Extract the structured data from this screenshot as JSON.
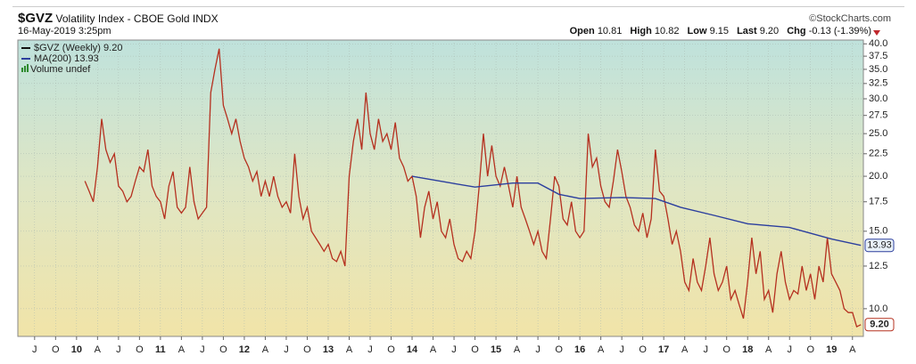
{
  "header": {
    "symbol": "$GVZ",
    "description": "Volatility Index - CBOE Gold INDX",
    "source": "©StockCharts.com",
    "timestamp": "16-May-2019 3:25pm",
    "quote": [
      {
        "label": "Open",
        "value": "10.81"
      },
      {
        "label": "High",
        "value": "10.82"
      },
      {
        "label": "Low",
        "value": "9.15"
      },
      {
        "label": "Last",
        "value": "9.20"
      },
      {
        "label": "Chg",
        "value": "-0.13 (-1.39%)"
      }
    ]
  },
  "chart_data": {
    "type": "line",
    "log_y": true,
    "grid": true,
    "volume_label": "Volume undef",
    "volume_color": "#2e8b2e",
    "ylim": [
      8.65,
      40.8
    ],
    "yticks": [
      {
        "value": 10,
        "label": "10.0"
      },
      12.5,
      {
        "value": 15,
        "label": "15.0"
      },
      17.5,
      {
        "value": 20,
        "label": "20.0"
      },
      22.5,
      {
        "value": 25,
        "label": "25.0"
      },
      27.5,
      {
        "value": 30,
        "label": "30.0"
      },
      32.5,
      {
        "value": 35,
        "label": "35.0"
      },
      37.5,
      {
        "value": 40,
        "label": "40.0"
      }
    ],
    "xlim": [
      2009.3,
      2019.38
    ],
    "xticks": [
      {
        "value": 2009.5,
        "label": "J"
      },
      {
        "value": 2009.75,
        "label": "O"
      },
      {
        "value": 2010,
        "label": "10"
      },
      {
        "value": 2010.25,
        "label": "A"
      },
      {
        "value": 2010.5,
        "label": "J"
      },
      {
        "value": 2010.75,
        "label": "O"
      },
      {
        "value": 2011,
        "label": "11"
      },
      {
        "value": 2011.25,
        "label": "A"
      },
      {
        "value": 2011.5,
        "label": "J"
      },
      {
        "value": 2011.75,
        "label": "O"
      },
      {
        "value": 2012,
        "label": "12"
      },
      {
        "value": 2012.25,
        "label": "A"
      },
      {
        "value": 2012.5,
        "label": "J"
      },
      {
        "value": 2012.75,
        "label": "O"
      },
      {
        "value": 2013,
        "label": "13"
      },
      {
        "value": 2013.25,
        "label": "A"
      },
      {
        "value": 2013.5,
        "label": "J"
      },
      {
        "value": 2013.75,
        "label": "O"
      },
      {
        "value": 2014,
        "label": "14"
      },
      {
        "value": 2014.25,
        "label": "A"
      },
      {
        "value": 2014.5,
        "label": "J"
      },
      {
        "value": 2014.75,
        "label": "O"
      },
      {
        "value": 2015,
        "label": "15"
      },
      {
        "value": 2015.25,
        "label": "A"
      },
      {
        "value": 2015.5,
        "label": "J"
      },
      {
        "value": 2015.75,
        "label": "O"
      },
      {
        "value": 2016,
        "label": "16"
      },
      {
        "value": 2016.25,
        "label": "A"
      },
      {
        "value": 2016.5,
        "label": "J"
      },
      {
        "value": 2016.75,
        "label": "O"
      },
      {
        "value": 2017,
        "label": "17"
      },
      {
        "value": 2017.25,
        "label": "A"
      },
      {
        "value": 2017.5,
        "label": "J"
      },
      {
        "value": 2017.75,
        "label": "O"
      },
      {
        "value": 2018,
        "label": "18"
      },
      {
        "value": 2018.25,
        "label": "A"
      },
      {
        "value": 2018.5,
        "label": "J"
      },
      {
        "value": 2018.75,
        "label": "O"
      },
      {
        "value": 2019,
        "label": "19"
      },
      {
        "value": 2019.25,
        "label": "A"
      }
    ],
    "series": [
      {
        "name": "$GVZ (Weekly) 9.20",
        "color": "#b5301f",
        "last_label": "9.20",
        "x": [
          2010.1,
          2010.15,
          2010.2,
          2010.25,
          2010.3,
          2010.35,
          2010.4,
          2010.45,
          2010.5,
          2010.55,
          2010.6,
          2010.65,
          2010.7,
          2010.75,
          2010.8,
          2010.85,
          2010.9,
          2010.95,
          2011,
          2011.05,
          2011.1,
          2011.15,
          2011.2,
          2011.25,
          2011.3,
          2011.35,
          2011.4,
          2011.45,
          2011.5,
          2011.55,
          2011.6,
          2011.65,
          2011.7,
          2011.75,
          2011.8,
          2011.85,
          2011.9,
          2011.95,
          2012,
          2012.05,
          2012.1,
          2012.15,
          2012.2,
          2012.25,
          2012.3,
          2012.35,
          2012.4,
          2012.45,
          2012.5,
          2012.55,
          2012.6,
          2012.65,
          2012.7,
          2012.75,
          2012.8,
          2012.85,
          2012.9,
          2012.95,
          2013,
          2013.05,
          2013.1,
          2013.15,
          2013.2,
          2013.25,
          2013.3,
          2013.35,
          2013.4,
          2013.45,
          2013.5,
          2013.55,
          2013.6,
          2013.65,
          2013.7,
          2013.75,
          2013.8,
          2013.85,
          2013.9,
          2013.95,
          2014,
          2014.05,
          2014.1,
          2014.15,
          2014.2,
          2014.25,
          2014.3,
          2014.35,
          2014.4,
          2014.45,
          2014.5,
          2014.55,
          2014.6,
          2014.65,
          2014.7,
          2014.75,
          2014.8,
          2014.85,
          2014.9,
          2014.95,
          2015,
          2015.05,
          2015.1,
          2015.15,
          2015.2,
          2015.25,
          2015.3,
          2015.35,
          2015.4,
          2015.45,
          2015.5,
          2015.55,
          2015.6,
          2015.65,
          2015.7,
          2015.75,
          2015.8,
          2015.85,
          2015.9,
          2015.95,
          2016,
          2016.05,
          2016.1,
          2016.15,
          2016.2,
          2016.25,
          2016.3,
          2016.35,
          2016.4,
          2016.45,
          2016.5,
          2016.55,
          2016.6,
          2016.65,
          2016.7,
          2016.75,
          2016.8,
          2016.85,
          2016.9,
          2016.95,
          2017,
          2017.05,
          2017.1,
          2017.15,
          2017.2,
          2017.25,
          2017.3,
          2017.35,
          2017.4,
          2017.45,
          2017.5,
          2017.55,
          2017.6,
          2017.65,
          2017.7,
          2017.75,
          2017.8,
          2017.85,
          2017.9,
          2017.95,
          2018,
          2018.05,
          2018.1,
          2018.15,
          2018.2,
          2018.25,
          2018.3,
          2018.35,
          2018.4,
          2018.45,
          2018.5,
          2018.55,
          2018.6,
          2018.65,
          2018.7,
          2018.75,
          2018.8,
          2018.85,
          2018.9,
          2018.95,
          2019,
          2019.05,
          2019.1,
          2019.15,
          2019.2,
          2019.25,
          2019.3,
          2019.35
        ],
        "values": [
          19.5,
          18.5,
          17.5,
          21,
          27,
          23,
          21.5,
          22.5,
          19,
          18.5,
          17.5,
          18,
          19.5,
          21,
          20.5,
          23,
          19,
          18,
          17.5,
          16,
          19,
          20.5,
          17,
          16.5,
          17,
          21,
          17.5,
          16,
          16.5,
          17,
          31,
          35,
          39,
          29,
          27,
          25,
          27,
          24,
          22,
          21,
          19.5,
          20.5,
          18,
          19.5,
          18,
          20,
          18,
          17,
          17.5,
          16.5,
          22.5,
          18,
          16,
          17,
          15,
          14.5,
          14,
          13.5,
          14,
          13,
          12.8,
          13.5,
          12.5,
          20,
          24,
          27,
          23,
          31,
          25,
          23,
          27,
          24,
          25,
          23,
          26.5,
          22,
          21,
          19.5,
          20,
          18,
          14.5,
          17,
          18.5,
          16,
          17.5,
          15,
          14.5,
          16,
          14,
          13,
          12.8,
          13.5,
          13,
          15,
          19,
          25,
          20,
          23.5,
          20,
          19,
          21,
          19,
          17,
          20,
          17,
          16,
          15,
          14,
          15,
          13.5,
          13,
          16,
          20,
          19,
          16,
          15.5,
          17.5,
          15,
          14.5,
          15,
          25,
          21,
          22,
          19,
          17.5,
          17,
          19.5,
          23,
          20.5,
          18,
          17,
          15.5,
          15,
          16.5,
          14.5,
          16,
          23,
          18.5,
          18,
          16,
          14,
          15,
          13.5,
          11.5,
          11,
          13,
          11.5,
          11,
          12.5,
          14.5,
          12,
          11,
          11.5,
          12.5,
          10.5,
          11,
          10.2,
          9.5,
          11.5,
          14.5,
          12,
          13.5,
          10.5,
          11,
          9.8,
          12,
          13.5,
          11.5,
          10.5,
          11,
          10.8,
          12.5,
          11,
          12,
          10.5,
          12.5,
          11.5,
          14.5,
          12,
          11.5,
          11,
          10,
          9.8,
          9.8,
          9.1,
          9.2
        ]
      },
      {
        "name": "MA(200) 13.93",
        "color": "#2c3f9e",
        "last_label": "13.93",
        "x": [
          2014,
          2014.4,
          2014.75,
          2015.2,
          2015.5,
          2015.75,
          2016,
          2016.5,
          2016.9,
          2017.2,
          2017.6,
          2018,
          2018.5,
          2019,
          2019.35
        ],
        "values": [
          20,
          19.4,
          18.9,
          19.3,
          19.3,
          18.2,
          17.8,
          17.9,
          17.8,
          17,
          16.3,
          15.6,
          15.3,
          14.4,
          13.93
        ]
      }
    ]
  }
}
